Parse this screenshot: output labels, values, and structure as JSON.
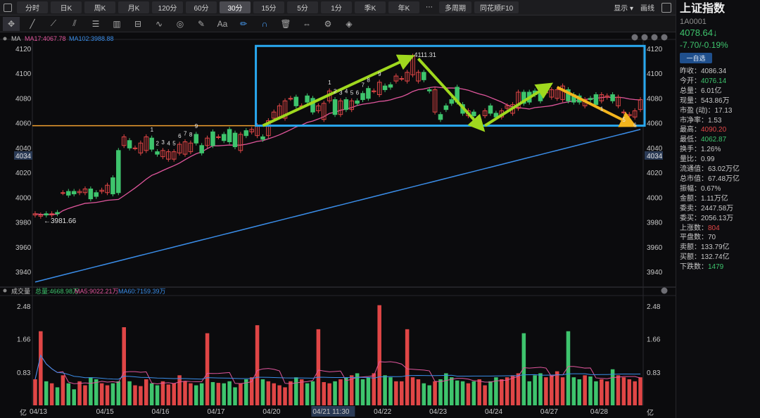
{
  "toolbar": {
    "tabs": [
      "分时",
      "日K",
      "周K",
      "月K",
      "120分",
      "60分",
      "30分",
      "15分",
      "5分",
      "1分",
      "季K",
      "年K",
      "⋯",
      "多周期",
      "同花顺F10"
    ],
    "active_tab": "30分",
    "right_items": [
      "显示 ▾",
      "画线"
    ]
  },
  "side_panel": {
    "title": "上证指数",
    "code": "1A0001",
    "price": "4078.64↓",
    "change": "-7.70/-0.19%",
    "add_button": "一自选",
    "stats": [
      {
        "k": "昨收：",
        "v": "4086.34",
        "c": ""
      },
      {
        "k": "今开：",
        "v": "4076.14",
        "c": "green"
      },
      {
        "k": "总量：",
        "v": "6.01亿",
        "c": ""
      },
      {
        "k": "现量：",
        "v": "543.86万",
        "c": ""
      },
      {
        "k": "市盈 (动)：",
        "v": "17.13",
        "c": ""
      },
      {
        "k": "市净率：",
        "v": "1.53",
        "c": ""
      },
      {
        "k": "最高：",
        "v": "4090.20",
        "c": "red"
      },
      {
        "k": "最低：",
        "v": "4062.87",
        "c": "green"
      },
      {
        "k": "换手：",
        "v": "1.26%",
        "c": ""
      },
      {
        "k": "量比：",
        "v": "0.99",
        "c": ""
      },
      {
        "k": "流通值：",
        "v": "63.02万亿",
        "c": ""
      },
      {
        "k": "总市值：",
        "v": "67.48万亿",
        "c": ""
      },
      {
        "k": "振幅：",
        "v": "0.67%",
        "c": ""
      },
      {
        "k": "金额：",
        "v": "1.11万亿",
        "c": ""
      },
      {
        "k": "委卖：",
        "v": "2447.58万",
        "c": ""
      },
      {
        "k": "委买：",
        "v": "2056.13万",
        "c": ""
      },
      {
        "k": "上涨数：",
        "v": "804",
        "c": "red"
      },
      {
        "k": "平盘数：",
        "v": "70",
        "c": ""
      },
      {
        "k": "卖额：",
        "v": "133.79亿",
        "c": ""
      },
      {
        "k": "买额：",
        "v": "132.74亿",
        "c": ""
      },
      {
        "k": "下跌数：",
        "v": "1479",
        "c": "green"
      }
    ]
  },
  "chart_data": [
    {
      "type": "candlestick",
      "title": "MA",
      "indicators": [
        {
          "name": "MA17:4067.78",
          "color": "#e0569c"
        },
        {
          "name": "MA102:3988.88",
          "color": "#3a8de8"
        }
      ],
      "y_ticks": [
        3940,
        3960,
        3980,
        4000,
        4020,
        4040,
        4060,
        4080,
        4100,
        4120
      ],
      "ylim": [
        3929,
        4123
      ],
      "current_price_label": "4034",
      "annotations": {
        "low": "←3981.66",
        "high": "4111.31",
        "horizontal_line": 4058,
        "box": {
          "from_bar": 40,
          "to_bar": 110,
          "y_top": 4120,
          "y_bottom": 4058
        }
      },
      "candles_open_close": [
        [
          3986,
          3987
        ],
        [
          3985,
          3986
        ],
        [
          3987,
          3986
        ],
        [
          3986,
          3987
        ],
        [
          3988,
          3987
        ],
        [
          4004,
          4004
        ],
        [
          4005,
          4002
        ],
        [
          4005,
          4003
        ],
        [
          4004,
          4005
        ],
        [
          4004,
          4007
        ],
        [
          4007,
          3999
        ],
        [
          4004,
          4001
        ],
        [
          4005,
          4006
        ],
        [
          4004,
          4010
        ],
        [
          4016,
          4003
        ],
        [
          4038,
          4004
        ],
        [
          4042,
          4049
        ],
        [
          4046,
          4040
        ],
        [
          4040,
          4040
        ],
        [
          4036,
          4044
        ],
        [
          4038,
          4049
        ],
        [
          4048,
          4039
        ],
        [
          4037,
          4035
        ],
        [
          4033,
          4038
        ],
        [
          4031,
          4037
        ],
        [
          4031,
          4037
        ],
        [
          4036,
          4043
        ],
        [
          4035,
          4045
        ],
        [
          4037,
          4044
        ],
        [
          4051,
          4044
        ],
        [
          4042,
          4036
        ],
        [
          4042,
          4048
        ],
        [
          4053,
          4042
        ],
        [
          4049,
          4049
        ],
        [
          4051,
          4046
        ],
        [
          4055,
          4045
        ],
        [
          4052,
          4041
        ],
        [
          4038,
          4051
        ],
        [
          4054,
          4050
        ],
        [
          4053,
          4055
        ],
        [
          4050,
          4058
        ],
        [
          4049,
          4047
        ],
        [
          4050,
          4062
        ],
        [
          4064,
          4069
        ],
        [
          4065,
          4074
        ],
        [
          4064,
          4078
        ],
        [
          4080,
          4080
        ],
        [
          4081,
          4074
        ],
        [
          4074,
          4074
        ],
        [
          4082,
          4077
        ],
        [
          4080,
          4069
        ],
        [
          4070,
          4074
        ],
        [
          4063,
          4076
        ],
        [
          4078,
          4086
        ],
        [
          4079,
          4067
        ],
        [
          4067,
          4078
        ],
        [
          4079,
          4071
        ],
        [
          4071,
          4078
        ],
        [
          4078,
          4076
        ],
        [
          4084,
          4079
        ],
        [
          4088,
          4080
        ],
        [
          4086,
          4086
        ],
        [
          4083,
          4093
        ],
        [
          4090,
          4087
        ],
        [
          4091,
          4089
        ],
        [
          4094,
          4098
        ],
        [
          4096,
          4096
        ],
        [
          4094,
          4101
        ],
        [
          4099,
          4114
        ],
        [
          4094,
          4101
        ],
        [
          4101,
          4095
        ],
        [
          4087,
          4086
        ],
        [
          4069,
          4087
        ],
        [
          4067,
          4063
        ],
        [
          4074,
          4071
        ],
        [
          4079,
          4076
        ],
        [
          4089,
          4077
        ],
        [
          4075,
          4068
        ],
        [
          4066,
          4070
        ],
        [
          4069,
          4066
        ],
        [
          4061,
          4063
        ],
        [
          4066,
          4070
        ],
        [
          4074,
          4068
        ],
        [
          4068,
          4065
        ],
        [
          4065,
          4070
        ],
        [
          4072,
          4074
        ],
        [
          4068,
          4075
        ],
        [
          4072,
          4085
        ],
        [
          4085,
          4076
        ],
        [
          4085,
          4077
        ],
        [
          4086,
          4083
        ],
        [
          4084,
          4078
        ],
        [
          4085,
          4085
        ],
        [
          4081,
          4087
        ],
        [
          4080,
          4087
        ],
        [
          4079,
          4090
        ],
        [
          4087,
          4078
        ],
        [
          4083,
          4077
        ],
        [
          4082,
          4077
        ],
        [
          4074,
          4079
        ],
        [
          4080,
          4079
        ],
        [
          4083,
          4075
        ],
        [
          4078,
          4083
        ],
        [
          4081,
          4082
        ],
        [
          4083,
          4078
        ],
        [
          4074,
          4081
        ],
        [
          4069,
          4069
        ],
        [
          4066,
          4067
        ],
        [
          4065,
          4070
        ],
        [
          4071,
          4079
        ]
      ],
      "x_labels": [
        "04/13",
        "04/15",
        "04/16",
        "04/17",
        "04/20",
        "04/21 11:30",
        "04/22",
        "04/23",
        "04/24",
        "04/27",
        "04/28"
      ],
      "td_counts_up": [
        "1",
        "2",
        "3",
        "4",
        "5",
        "6",
        "7",
        "8",
        "9",
        "1",
        "2",
        "3",
        "4",
        "5",
        "6",
        "7",
        "8",
        "9"
      ],
      "td_counts_down": [
        "1",
        "5",
        "6"
      ]
    },
    {
      "type": "bar",
      "title": "成交量",
      "legend": [
        {
          "name": "总量:4668.98万",
          "color": "#3ec46d"
        },
        {
          "name": "MA5:9022.21万",
          "color": "#e0569c"
        },
        {
          "name": "MA60:7159.39万",
          "color": "#3a8de8"
        }
      ],
      "y_ticks": [
        "2.48",
        "1.66",
        "0.83",
        "亿"
      ],
      "unit": "亿",
      "ylim": [
        0,
        2.6
      ],
      "volumes": [
        0.65,
        1.85,
        0.6,
        0.55,
        0.45,
        0.75,
        0.55,
        0.4,
        0.6,
        0.5,
        0.7,
        0.65,
        0.55,
        0.5,
        0.55,
        0.6,
        1.95,
        0.6,
        0.5,
        0.48,
        0.65,
        0.55,
        0.5,
        0.6,
        0.52,
        0.55,
        0.75,
        0.6,
        0.55,
        0.5,
        0.55,
        1.8,
        0.58,
        0.56,
        0.55,
        0.6,
        0.45,
        0.55,
        0.65,
        0.7,
        2.0,
        0.65,
        0.6,
        0.55,
        0.5,
        0.45,
        0.6,
        0.7,
        0.65,
        0.55,
        0.6,
        1.9,
        0.58,
        0.55,
        0.6,
        0.65,
        0.7,
        0.75,
        0.8,
        0.65,
        0.7,
        0.8,
        2.5,
        0.75,
        0.7,
        0.6,
        0.6,
        1.9,
        0.7,
        0.65,
        0.55,
        0.5,
        0.6,
        0.65,
        0.8,
        0.7,
        0.62,
        0.6,
        0.55,
        0.6,
        0.65,
        0.5,
        0.6,
        0.7,
        0.65,
        0.7,
        0.75,
        0.8,
        1.8,
        0.6,
        0.75,
        0.8,
        0.7,
        0.75,
        0.85,
        0.7,
        1.85,
        0.7,
        0.65,
        0.75,
        0.72,
        0.6,
        0.65,
        0.6,
        0.9,
        0.75,
        0.7,
        0.65,
        0.6,
        0.7
      ]
    }
  ]
}
